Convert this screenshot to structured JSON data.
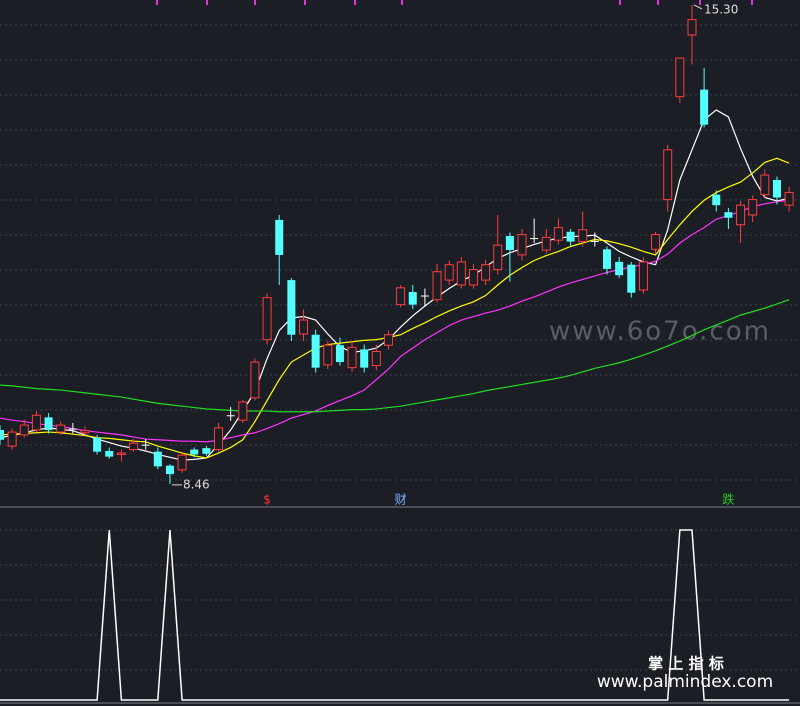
{
  "chart_data": [
    {
      "type": "candlestick",
      "ylim": [
        8.13,
        15.37
      ],
      "up_color": "#ff3c3c",
      "down_color": "#54ffff",
      "flat_color": "#ffffff",
      "open": [
        9.23,
        9.0,
        9.16,
        9.23,
        9.41,
        9.2,
        9.25,
        9.19,
        9.12,
        8.93,
        8.88,
        8.95,
        9.02,
        8.92,
        8.72,
        8.66,
        8.95,
        8.97,
        8.95,
        9.44,
        9.37,
        9.69,
        10.52,
        12.23,
        11.37,
        10.6,
        10.59,
        10.16,
        10.44,
        10.12,
        10.38,
        10.15,
        10.44,
        11.02,
        11.2,
        11.15,
        11.09,
        11.37,
        11.3,
        11.3,
        11.37,
        11.52,
        12.0,
        11.73,
        11.97,
        11.8,
        11.94,
        12.06,
        11.92,
        11.93,
        11.81,
        11.63,
        11.59,
        11.23,
        11.81,
        12.52,
        13.99,
        14.87,
        14.09,
        12.59,
        12.34,
        12.16,
        12.3,
        12.59,
        12.8,
        12.44
      ],
      "high": [
        9.3,
        9.25,
        9.38,
        9.5,
        9.47,
        9.35,
        9.33,
        9.28,
        9.16,
        8.98,
        8.95,
        9.1,
        9.1,
        8.98,
        8.74,
        8.92,
        8.98,
        9.0,
        9.33,
        9.56,
        9.66,
        10.25,
        11.18,
        12.3,
        11.4,
        10.95,
        10.66,
        10.5,
        10.55,
        10.5,
        10.45,
        10.45,
        10.65,
        11.3,
        11.3,
        11.25,
        11.6,
        11.65,
        11.7,
        11.6,
        11.66,
        12.3,
        12.05,
        12.1,
        12.25,
        12.1,
        12.25,
        12.1,
        12.35,
        12.05,
        11.85,
        11.7,
        11.63,
        11.7,
        12.06,
        13.3,
        14.55,
        15.3,
        14.4,
        12.65,
        12.4,
        12.5,
        12.58,
        12.95,
        12.85,
        12.7
      ],
      "low": [
        9.02,
        8.95,
        9.12,
        9.2,
        9.18,
        9.16,
        9.18,
        9.15,
        8.88,
        8.82,
        8.78,
        8.92,
        8.95,
        8.67,
        8.46,
        8.62,
        8.84,
        8.86,
        8.92,
        9.36,
        9.33,
        9.65,
        10.45,
        11.3,
        10.5,
        10.5,
        10.05,
        10.1,
        10.15,
        10.06,
        10.05,
        10.08,
        10.38,
        10.98,
        10.96,
        11.0,
        11.05,
        11.3,
        11.25,
        11.25,
        11.3,
        11.45,
        11.35,
        11.65,
        11.9,
        11.75,
        11.88,
        11.85,
        11.85,
        11.85,
        11.45,
        11.4,
        11.12,
        11.18,
        11.75,
        12.35,
        13.9,
        14.45,
        13.55,
        12.35,
        12.1,
        11.9,
        12.2,
        12.55,
        12.45,
        12.35
      ],
      "close": [
        9.09,
        9.2,
        9.3,
        9.44,
        9.23,
        9.3,
        9.25,
        9.22,
        8.92,
        8.85,
        8.9,
        9.04,
        9.02,
        8.71,
        8.6,
        8.87,
        8.88,
        8.89,
        9.26,
        9.44,
        9.63,
        10.2,
        11.12,
        11.73,
        10.59,
        10.8,
        10.12,
        10.44,
        10.2,
        10.41,
        10.12,
        10.35,
        10.59,
        11.26,
        11.02,
        11.15,
        11.49,
        11.59,
        11.63,
        11.52,
        11.59,
        11.87,
        11.8,
        12.02,
        11.97,
        11.98,
        12.12,
        11.92,
        12.09,
        11.93,
        11.53,
        11.44,
        11.19,
        11.63,
        12.02,
        13.23,
        14.54,
        15.09,
        13.59,
        12.44,
        12.26,
        12.44,
        12.52,
        12.87,
        12.55,
        12.62
      ],
      "series": [
        {
          "color": "#ffffff",
          "values": [
            9.12,
            9.15,
            9.19,
            9.23,
            9.26,
            9.24,
            9.22,
            9.16,
            9.1,
            9.05,
            9.0,
            8.97,
            8.93,
            8.88,
            8.84,
            8.8,
            8.81,
            8.83,
            9.02,
            9.23,
            9.5,
            9.78,
            10.25,
            10.65,
            10.83,
            10.85,
            10.8,
            10.6,
            10.42,
            10.34,
            10.36,
            10.4,
            10.52,
            10.7,
            10.86,
            11.0,
            11.13,
            11.25,
            11.36,
            11.44,
            11.56,
            11.68,
            11.76,
            11.82,
            11.88,
            11.93,
            11.97,
            11.99,
            12.0,
            12.01,
            11.9,
            11.78,
            11.7,
            11.63,
            11.59,
            12.09,
            12.8,
            13.23,
            13.66,
            13.8,
            13.7,
            13.25,
            12.85,
            12.55,
            12.5,
            12.54
          ]
        },
        {
          "color": "#ffff00",
          "values": [
            9.16,
            9.17,
            9.18,
            9.19,
            9.2,
            9.19,
            9.17,
            9.15,
            9.12,
            9.11,
            9.09,
            9.07,
            9.06,
            9.0,
            8.95,
            8.9,
            8.86,
            8.83,
            8.9,
            8.98,
            9.09,
            9.35,
            9.65,
            9.95,
            10.2,
            10.3,
            10.4,
            10.45,
            10.47,
            10.49,
            10.51,
            10.52,
            10.55,
            10.59,
            10.68,
            10.76,
            10.85,
            10.93,
            11.0,
            11.06,
            11.15,
            11.3,
            11.44,
            11.55,
            11.65,
            11.72,
            11.78,
            11.85,
            11.9,
            11.95,
            11.93,
            11.89,
            11.84,
            11.78,
            11.73,
            11.95,
            12.16,
            12.35,
            12.51,
            12.62,
            12.7,
            12.77,
            12.9,
            13.05,
            13.11,
            13.04
          ]
        },
        {
          "color": "#ff33ff",
          "values": [
            9.4,
            9.37,
            9.35,
            9.32,
            9.3,
            9.28,
            9.25,
            9.22,
            9.2,
            9.18,
            9.16,
            9.13,
            9.1,
            9.09,
            9.08,
            9.07,
            9.07,
            9.06,
            9.08,
            9.12,
            9.16,
            9.19,
            9.25,
            9.32,
            9.4,
            9.45,
            9.5,
            9.58,
            9.65,
            9.72,
            9.8,
            9.95,
            10.1,
            10.28,
            10.4,
            10.52,
            10.62,
            10.72,
            10.8,
            10.85,
            10.9,
            10.94,
            11.0,
            11.07,
            11.13,
            11.2,
            11.27,
            11.33,
            11.38,
            11.43,
            11.48,
            11.52,
            11.56,
            11.59,
            11.64,
            11.74,
            11.9,
            12.02,
            12.12,
            12.24,
            12.29,
            12.35,
            12.42,
            12.46,
            12.49,
            12.51
          ]
        },
        {
          "color": "#22dd22",
          "values": [
            9.87,
            9.86,
            9.84,
            9.82,
            9.81,
            9.8,
            9.78,
            9.76,
            9.74,
            9.72,
            9.7,
            9.67,
            9.64,
            9.61,
            9.59,
            9.57,
            9.55,
            9.53,
            9.52,
            9.51,
            9.5,
            9.5,
            9.5,
            9.49,
            9.49,
            9.49,
            9.49,
            9.5,
            9.51,
            9.52,
            9.52,
            9.53,
            9.55,
            9.57,
            9.6,
            9.63,
            9.66,
            9.69,
            9.72,
            9.75,
            9.79,
            9.82,
            9.85,
            9.88,
            9.91,
            9.94,
            9.97,
            10.01,
            10.06,
            10.11,
            10.15,
            10.19,
            10.24,
            10.3,
            10.36,
            10.43,
            10.5,
            10.58,
            10.66,
            10.73,
            10.8,
            10.87,
            10.92,
            10.97,
            11.03,
            11.09
          ]
        }
      ],
      "max_label": "15.30",
      "min_label": "8.46",
      "signals": [
        null,
        null,
        null,
        null,
        null,
        null,
        null,
        null,
        null,
        null,
        null,
        null,
        null,
        null,
        null,
        null,
        null,
        null,
        null,
        null,
        null,
        null,
        {
          "text": "$",
          "color": "#ff3030"
        },
        null,
        null,
        null,
        null,
        null,
        null,
        null,
        null,
        null,
        null,
        {
          "text": "财",
          "color": "#7fb0ff"
        },
        null,
        null,
        null,
        null,
        null,
        null,
        null,
        null,
        null,
        null,
        null,
        null,
        null,
        null,
        null,
        null,
        null,
        null,
        null,
        null,
        null,
        null,
        null,
        null,
        null,
        null,
        {
          "text": "跌",
          "color": "#22cc22"
        },
        null,
        null,
        null,
        null,
        null,
        null,
        null
      ]
    },
    {
      "type": "line",
      "ylim": [
        0,
        1
      ],
      "color": "#ffffff",
      "values": [
        0,
        0,
        0,
        0,
        0,
        0,
        0,
        0,
        0,
        1,
        0,
        0,
        0,
        0,
        1,
        0,
        0,
        0,
        0,
        0,
        0,
        0,
        0,
        0,
        0,
        0,
        0,
        0,
        0,
        0,
        0,
        0,
        0,
        0,
        0,
        0,
        0,
        0,
        0,
        0,
        0,
        0,
        0,
        0,
        0,
        0,
        0,
        0,
        0,
        0,
        0,
        0,
        0,
        0,
        0,
        0,
        1,
        1,
        0,
        0,
        0,
        0,
        0,
        0,
        0,
        0
      ]
    }
  ],
  "watermarks": [
    "www.6o7o.com",
    "掌 上 指 标",
    "www.palmindex.com"
  ]
}
